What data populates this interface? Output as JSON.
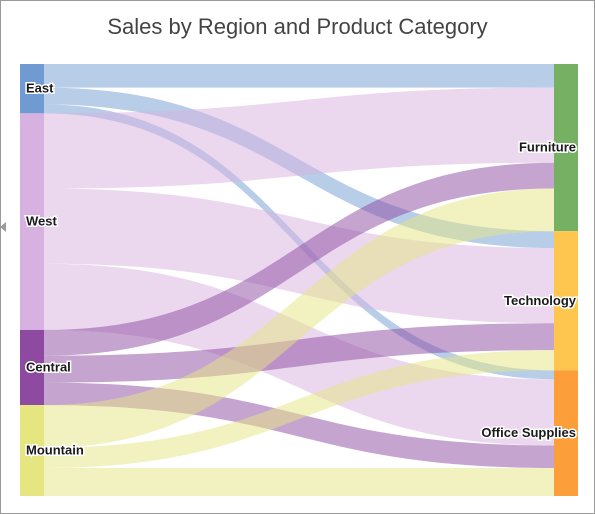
{
  "chart_data": {
    "type": "sankey",
    "title": "Sales by Region and Product Category",
    "sources": [
      {
        "name": "East",
        "color": "#6f9bd1"
      },
      {
        "name": "West",
        "color": "#d7b2e0"
      },
      {
        "name": "Central",
        "color": "#8e4aa1"
      },
      {
        "name": "Mountain",
        "color": "#e6e681"
      }
    ],
    "targets": [
      {
        "name": "Furniture",
        "color": "#76b063"
      },
      {
        "name": "Technology",
        "color": "#fec64e"
      },
      {
        "name": "Office Supplies",
        "color": "#fc9f3b"
      }
    ],
    "flows": [
      {
        "source": "East",
        "target": "Furniture",
        "value": 21
      },
      {
        "source": "East",
        "target": "Technology",
        "value": 15
      },
      {
        "source": "East",
        "target": "Office Supplies",
        "value": 8
      },
      {
        "source": "West",
        "target": "Furniture",
        "value": 67
      },
      {
        "source": "West",
        "target": "Technology",
        "value": 67
      },
      {
        "source": "West",
        "target": "Office Supplies",
        "value": 59
      },
      {
        "source": "Central",
        "target": "Furniture",
        "value": 23
      },
      {
        "source": "Central",
        "target": "Technology",
        "value": 24
      },
      {
        "source": "Central",
        "target": "Office Supplies",
        "value": 20
      },
      {
        "source": "Mountain",
        "target": "Furniture",
        "value": 38
      },
      {
        "source": "Mountain",
        "target": "Technology",
        "value": 18
      },
      {
        "source": "Mountain",
        "target": "Office Supplies",
        "value": 25
      }
    ]
  }
}
